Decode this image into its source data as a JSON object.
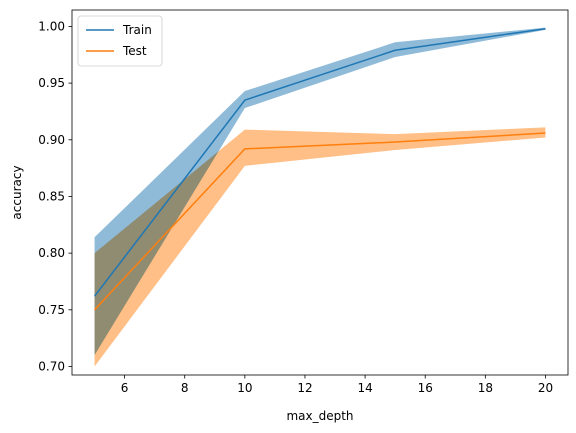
{
  "chart_data": {
    "type": "line",
    "title": "",
    "xlabel": "max_depth",
    "ylabel": "accuracy",
    "x": [
      5,
      10,
      15,
      20
    ],
    "xlim": [
      4.25,
      20.75
    ],
    "ylim": [
      0.6925,
      1.0145
    ],
    "xticks": [
      "6",
      "8",
      "10",
      "12",
      "14",
      "16",
      "18",
      "20"
    ],
    "yticks": [
      "0.70",
      "0.75",
      "0.80",
      "0.85",
      "0.90",
      "0.95",
      "1.00"
    ],
    "grid": false,
    "legend_position": "top-left",
    "series": [
      {
        "name": "Train",
        "color": "#1f77b4",
        "band_color": "#8fbbd9",
        "values": [
          0.762,
          0.935,
          0.979,
          0.998
        ],
        "lower": [
          0.71,
          0.928,
          0.973,
          0.997
        ],
        "upper": [
          0.814,
          0.943,
          0.986,
          0.999
        ]
      },
      {
        "name": "Test",
        "color": "#ff7f0e",
        "band_color": "#ffbf86",
        "values": [
          0.75,
          0.892,
          0.898,
          0.906
        ],
        "lower": [
          0.7,
          0.877,
          0.891,
          0.902
        ],
        "upper": [
          0.8,
          0.909,
          0.905,
          0.911
        ]
      }
    ]
  }
}
